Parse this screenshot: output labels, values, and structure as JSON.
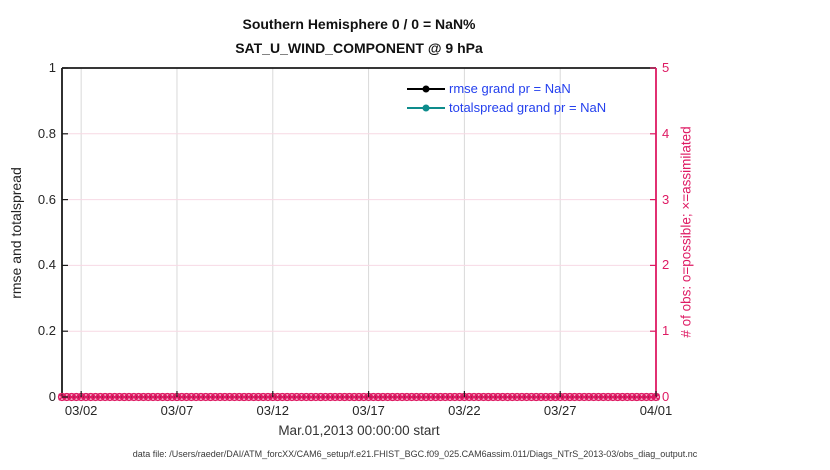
{
  "figure": {
    "title_line1": "Southern Hemisphere 0 / 0 = NaN%",
    "title_line2": "SAT_U_WIND_COMPONENT @ 9 hPa",
    "footer": "data file: /Users/raeder/DAI/ATM_forcXX/CAM6_setup/f.e21.FHIST_BGC.f09_025.CAM6assim.011/Diags_NTrS_2013-03/obs_diag_output.nc"
  },
  "chart_data": {
    "type": "line",
    "title": "Southern Hemisphere 0 / 0 = NaN% — SAT_U_WIND_COMPONENT @ 9 hPa",
    "xlabel": "Mar.01,2013 00:00:00 start",
    "ylabel_left": "rmse and totalspread",
    "ylabel_right": "# of obs: o=possible; ×=assimilated",
    "x_ticks": [
      "03/02",
      "03/07",
      "03/12",
      "03/17",
      "03/22",
      "03/27",
      "04/01"
    ],
    "x_tick_days": [
      1,
      6,
      11,
      16,
      21,
      26,
      31
    ],
    "x_range_days": [
      0,
      31
    ],
    "ylim_left": [
      0,
      1
    ],
    "y_ticks_left": [
      "0",
      "0.2",
      "0.4",
      "0.6",
      "0.8",
      "1"
    ],
    "y_tick_values_left": [
      0,
      0.2,
      0.4,
      0.6,
      0.8,
      1
    ],
    "ylim_right": [
      0,
      5
    ],
    "y_ticks_right": [
      "0",
      "1",
      "2",
      "3",
      "4",
      "5"
    ],
    "y_tick_values_right": [
      0,
      1,
      2,
      3,
      4,
      5
    ],
    "grid": true,
    "legend": {
      "position": "upper-right-of-center, no box",
      "entries": [
        {
          "label": "rmse grand pr = NaN",
          "color": "#000000",
          "marker": "filled-circle"
        },
        {
          "label": "totalspread grand pr = NaN",
          "color": "#0e8c8c",
          "marker": "filled-circle"
        }
      ]
    },
    "series": [
      {
        "name": "rmse",
        "color": "#000000",
        "grand_mean": "NaN",
        "values": []
      },
      {
        "name": "totalspread",
        "color": "#0e8c8c",
        "grand_mean": "NaN",
        "values": []
      },
      {
        "name": "possible obs count",
        "axis": "right",
        "marker": "o",
        "color": "#de1a63",
        "constant_value": 0,
        "start_day": 0,
        "end_day": 31,
        "sample_interval_days": 0.25
      },
      {
        "name": "assimilated obs count",
        "axis": "right",
        "marker": "x",
        "color": "#de1a63",
        "constant_value": 0,
        "start_day": 0,
        "end_day": 31,
        "sample_interval_days": 0.25
      }
    ],
    "colors": {
      "obs_axis": "#de1a63",
      "grid_horizontal": "#f7d9e4",
      "grid_vertical": "#d9d9d9",
      "axis_box": "#1a1a1a",
      "legend_text": "#2440ee",
      "teal": "#0e8c8c"
    }
  }
}
